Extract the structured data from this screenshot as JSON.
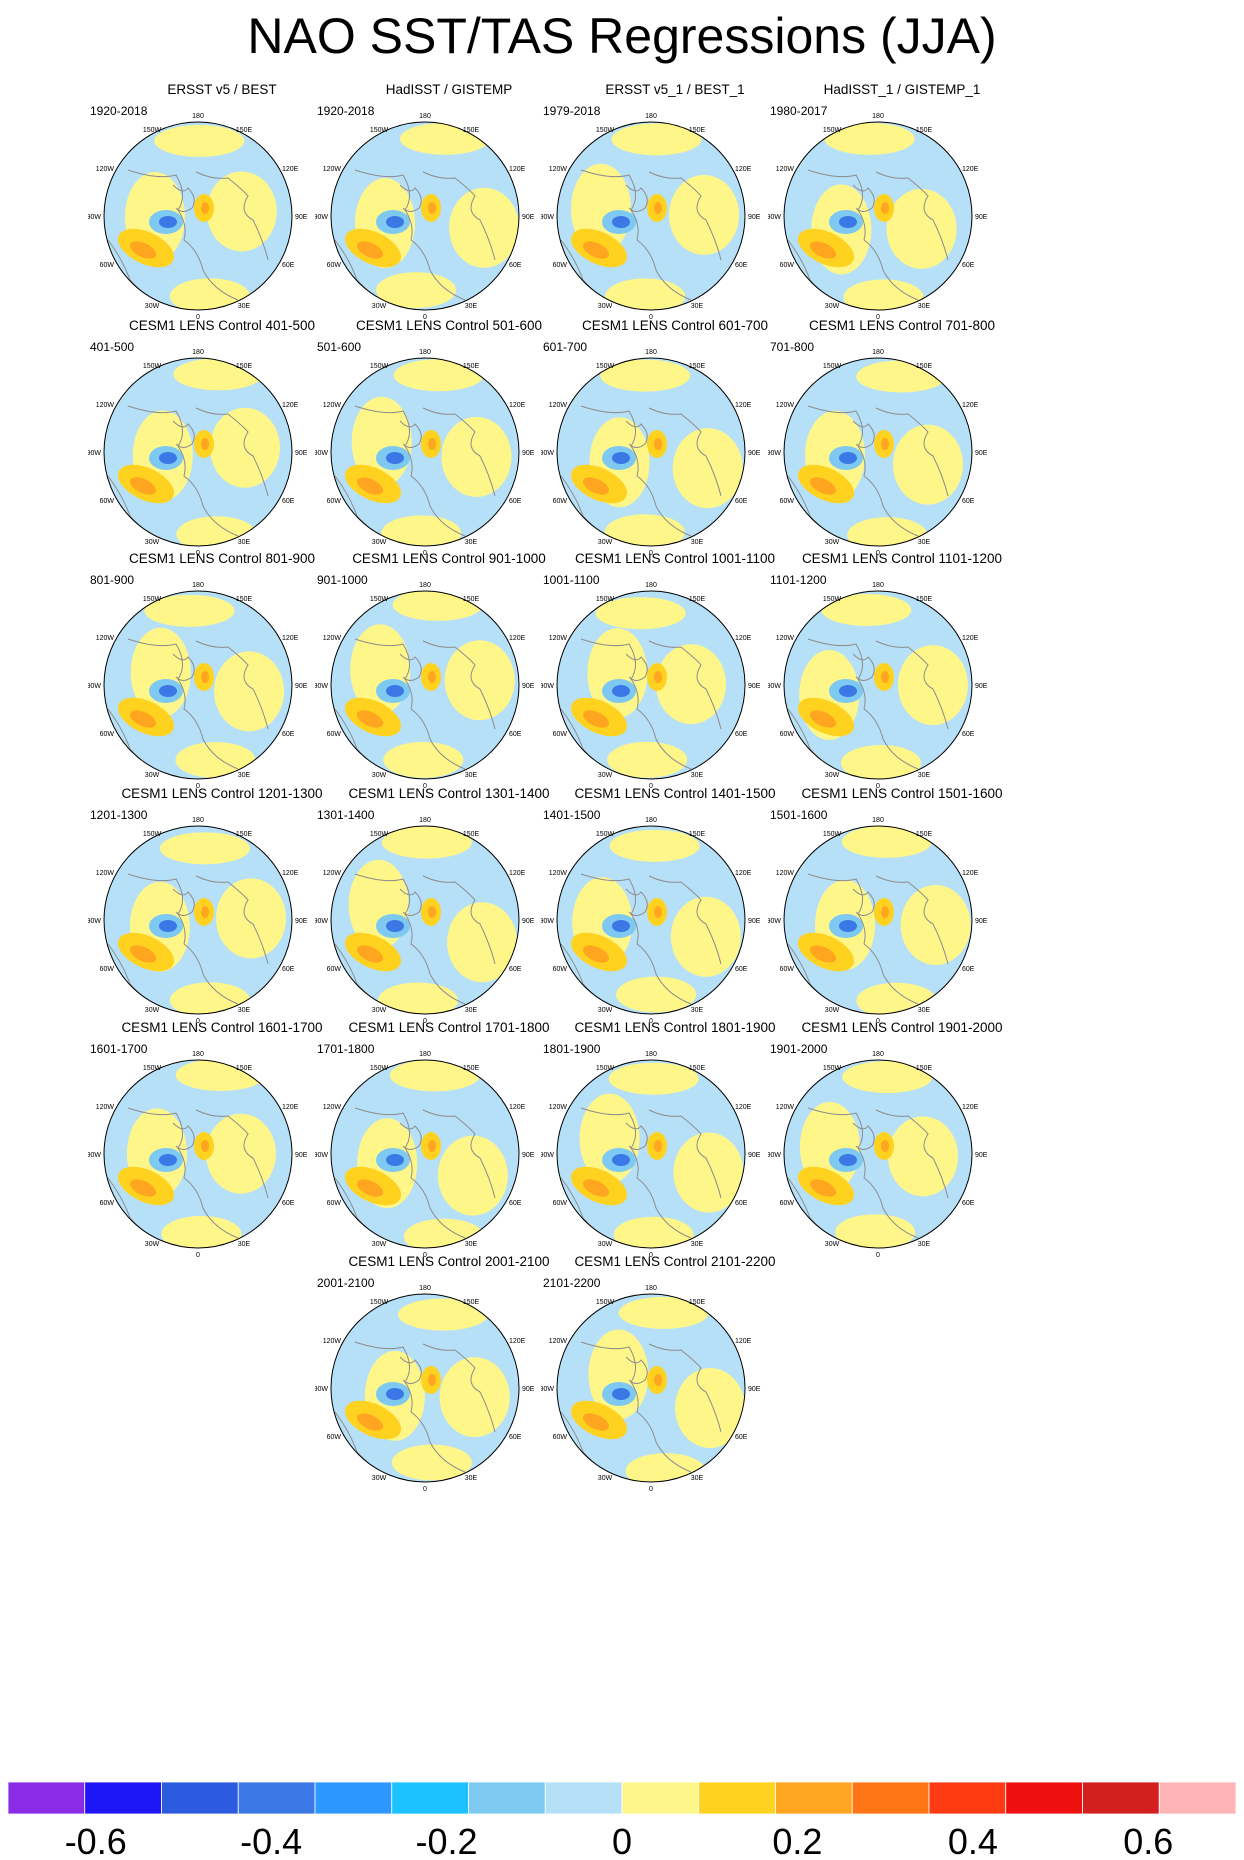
{
  "title": "NAO SST/TAS Regressions (JJA)",
  "map_labels": {
    "top": "180",
    "bottom": "0",
    "left": "90W",
    "right": "90E",
    "ul1": "150W",
    "ul2": "120W",
    "ll1": "60W",
    "ll2": "30W",
    "ur1": "150E",
    "ur2": "120E",
    "lr1": "60E",
    "lr2": "30E"
  },
  "chart_data": {
    "type": "heatmap",
    "title": "NAO SST/TAS Regressions (JJA)",
    "projection": "north-polar-stereographic",
    "panels": [
      {
        "title": "ERSST v5 / BEST",
        "period": "1920-2018"
      },
      {
        "title": "HadISST / GISTEMP",
        "period": "1920-2018"
      },
      {
        "title": "ERSST v5_1 / BEST_1",
        "period": "1979-2018"
      },
      {
        "title": "HadISST_1 / GISTEMP_1",
        "period": "1980-2017"
      },
      {
        "title": "CESM1 LENS Control 401-500",
        "period": "401-500"
      },
      {
        "title": "CESM1 LENS Control 501-600",
        "period": "501-600"
      },
      {
        "title": "CESM1 LENS Control 601-700",
        "period": "601-700"
      },
      {
        "title": "CESM1 LENS Control 701-800",
        "period": "701-800"
      },
      {
        "title": "CESM1 LENS Control 801-900",
        "period": "801-900"
      },
      {
        "title": "CESM1 LENS Control 901-1000",
        "period": "901-1000"
      },
      {
        "title": "CESM1 LENS Control 1001-1100",
        "period": "1001-1100"
      },
      {
        "title": "CESM1 LENS Control 1101-1200",
        "period": "1101-1200"
      },
      {
        "title": "CESM1 LENS Control 1201-1300",
        "period": "1201-1300"
      },
      {
        "title": "CESM1 LENS Control 1301-1400",
        "period": "1301-1400"
      },
      {
        "title": "CESM1 LENS Control 1401-1500",
        "period": "1401-1500"
      },
      {
        "title": "CESM1 LENS Control 1501-1600",
        "period": "1501-1600"
      },
      {
        "title": "CESM1 LENS Control 1601-1700",
        "period": "1601-1700"
      },
      {
        "title": "CESM1 LENS Control 1701-1800",
        "period": "1701-1800"
      },
      {
        "title": "CESM1 LENS Control 1801-1900",
        "period": "1801-1900"
      },
      {
        "title": "CESM1 LENS Control 1901-2000",
        "period": "1901-2000"
      },
      {
        "title": "CESM1 LENS Control 2001-2100",
        "period": "2001-2100"
      },
      {
        "title": "CESM1 LENS Control 2101-2200",
        "period": "2101-2200"
      }
    ],
    "colorbar": {
      "colors": [
        "#8a2be8",
        "#1f16f5",
        "#2c5be0",
        "#3b78e6",
        "#2e97ff",
        "#1cc2ff",
        "#7dc9f2",
        "#b6e0f7",
        "#fff68a",
        "#ffd21f",
        "#ffa51f",
        "#ff7414",
        "#ff3b14",
        "#ee0f0f",
        "#d41f1f",
        "#ffb5b5"
      ],
      "tick_values": [
        -0.6,
        -0.4,
        -0.2,
        0,
        0.2,
        0.4,
        0.6
      ],
      "tick_labels": [
        "-0.6",
        "-0.4",
        "-0.2",
        "0",
        "0.2",
        "0.4",
        "0.6"
      ],
      "range": [
        -0.7,
        0.7
      ]
    }
  }
}
